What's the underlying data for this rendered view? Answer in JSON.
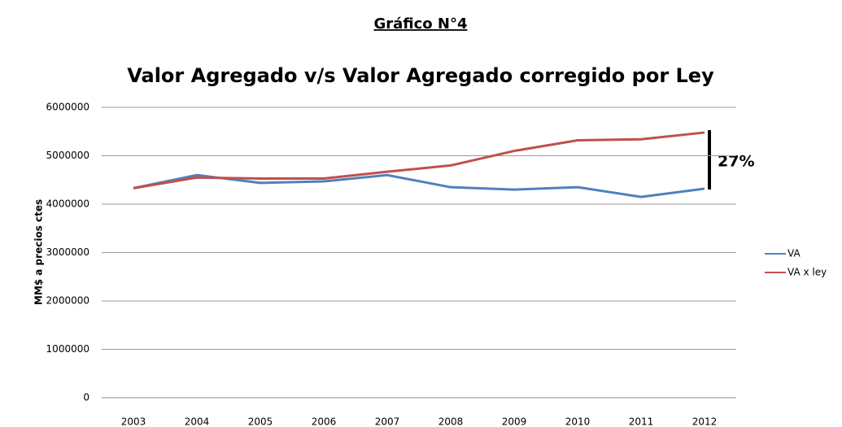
{
  "heading": "Gráfico N°4",
  "chart_data": {
    "type": "line",
    "title": "Valor Agregado v/s Valor Agregado corregido por Ley",
    "y_label": "MM$ a precios ctes",
    "annotation": "27%",
    "categories": [
      "2003",
      "2004",
      "2005",
      "2006",
      "2007",
      "2008",
      "2009",
      "2010",
      "2011",
      "2012"
    ],
    "series": [
      {
        "name": "VA",
        "color": "#4f81bd",
        "values": [
          4330000,
          4600000,
          4440000,
          4470000,
          4600000,
          4350000,
          4300000,
          4350000,
          4150000,
          4320000
        ]
      },
      {
        "name": "VA x ley",
        "color": "#c0504d",
        "values": [
          4330000,
          4550000,
          4530000,
          4530000,
          4670000,
          4800000,
          5100000,
          5320000,
          5340000,
          5480000
        ]
      }
    ],
    "ylim": [
      0,
      6000000
    ],
    "yticks": [
      0,
      1000000,
      2000000,
      3000000,
      4000000,
      5000000,
      6000000
    ],
    "grid": true,
    "legend": "right"
  }
}
